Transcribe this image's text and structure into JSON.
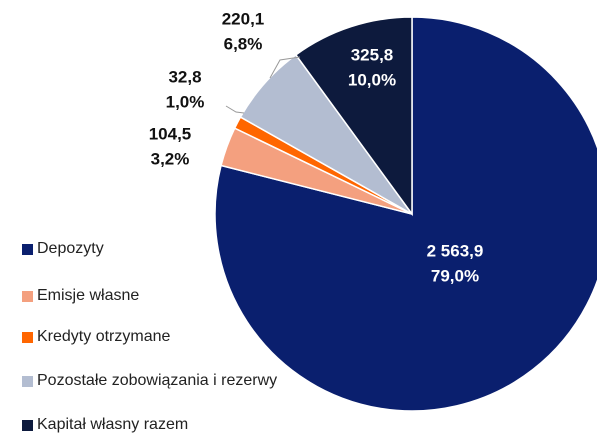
{
  "chart_data": {
    "type": "pie",
    "categories": [
      "Depozyty",
      "Emisje własne",
      "Kredyty otrzymane",
      "Pozostałe zobowiązania i rezerwy",
      "Kapitał własny razem"
    ],
    "values": [
      2563.9,
      104.5,
      32.8,
      220.1,
      325.8
    ],
    "value_labels": [
      "2 563,9",
      "104,5",
      "32,8",
      "220,1",
      "325,8"
    ],
    "percents": [
      79.0,
      3.2,
      1.0,
      6.8,
      10.0
    ],
    "percent_labels": [
      "79,0%",
      "3,2%",
      "1,0%",
      "6,8%",
      "10,0%"
    ],
    "colors": [
      "#0a1f6e",
      "#f4a07f",
      "#ff6600",
      "#b3bdd1",
      "#0d1a3d"
    ],
    "legend": "left"
  }
}
